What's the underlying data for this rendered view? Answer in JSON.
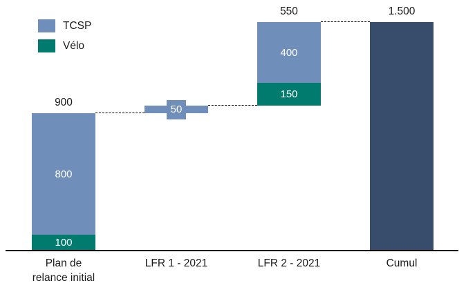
{
  "chart_data": {
    "type": "bar",
    "subtype": "waterfall_stacked",
    "title": "",
    "categories": [
      "Plan de relance initial",
      "LFR 1 - 2021",
      "LFR 2 - 2021",
      "Cumul"
    ],
    "category_lines": [
      [
        "Plan de",
        "relance initial"
      ],
      [
        "LFR 1 - 2021"
      ],
      [
        "LFR 2 - 2021"
      ],
      [
        "Cumul"
      ]
    ],
    "ylim": [
      0,
      1500
    ],
    "grid": false,
    "legend": {
      "position": "top-left",
      "items": [
        {
          "label": "TCSP",
          "color": "#6f8eba"
        },
        {
          "label": "Vélo",
          "color": "#007b6e"
        }
      ]
    },
    "series_colors": {
      "TCSP": "#6f8eba",
      "Vélo": "#007b6e",
      "Cumul": "#384c6c"
    },
    "bars": [
      {
        "category": "Plan de relance initial",
        "base": 0,
        "total": 900,
        "total_label": "900",
        "total_label_style": "above",
        "segments": [
          {
            "series": "Vélo",
            "value": 100,
            "label": "100"
          },
          {
            "series": "TCSP",
            "value": 800,
            "label": "800"
          }
        ]
      },
      {
        "category": "LFR 1 - 2021",
        "base": 900,
        "total": 50,
        "total_label": "50",
        "total_label_style": "boxed",
        "segments": [
          {
            "series": "TCSP",
            "value": 50,
            "label": ""
          }
        ]
      },
      {
        "category": "LFR 2 - 2021",
        "base": 950,
        "total": 550,
        "total_label": "550",
        "total_label_style": "above",
        "segments": [
          {
            "series": "Vélo",
            "value": 150,
            "label": "150"
          },
          {
            "series": "TCSP",
            "value": 400,
            "label": "400"
          }
        ]
      },
      {
        "category": "Cumul",
        "base": 0,
        "total": 1500,
        "total_label": "1.500",
        "total_label_style": "above",
        "segments": [
          {
            "series": "Cumul",
            "value": 1500,
            "label": ""
          }
        ]
      }
    ],
    "connectors": [
      {
        "level": 900,
        "from_bar": 0,
        "to_bar": 1
      },
      {
        "level": 950,
        "from_bar": 1,
        "to_bar": 2
      },
      {
        "level": 1500,
        "from_bar": 2,
        "to_bar": 3
      }
    ],
    "colors": {
      "background": "#ffffff",
      "axis_line": "#000000",
      "connector_line": "#000000",
      "label_text_dark": "#1a1a1a",
      "label_text_light": "#ffffff"
    }
  }
}
